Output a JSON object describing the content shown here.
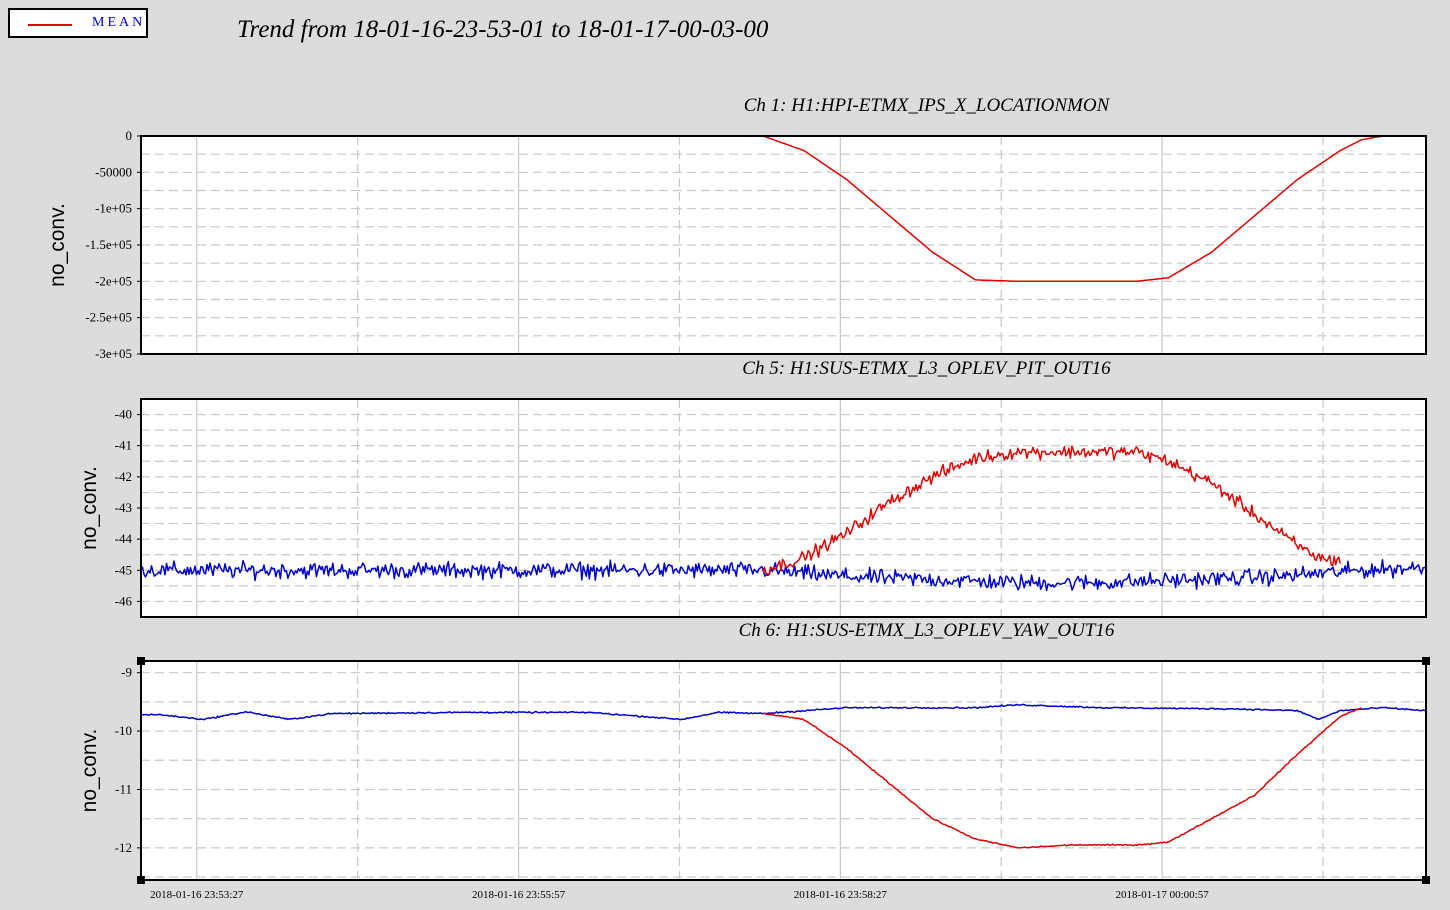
{
  "legend": {
    "label": "MEAN",
    "color": "#e00000"
  },
  "title": "Trend from 18-01-16-23-53-01 to 18-01-17-00-03-00",
  "colors": {
    "mean": "#e00000",
    "reference": "#0000cc",
    "grid": "#c8c8c8"
  },
  "chart_data": [
    {
      "type": "line",
      "title": "Ch 1: H1:HPI-ETMX_IPS_X_LOCATIONMON",
      "ylabel": "no_conv.",
      "ylim": [
        -300000,
        0
      ],
      "ytick_values": [
        0,
        -50000,
        -100000,
        -150000,
        -200000,
        -250000,
        -300000
      ],
      "ytick_labels": [
        "0",
        "-50000",
        "-1e+05",
        "-1.5e+05",
        "-2e+05",
        "-2.5e+05",
        "-3e+05"
      ],
      "xlim": [
        "2018-01-16 23:53:01",
        "2018-01-17 00:03:00"
      ],
      "series": [
        {
          "name": "MEAN",
          "color": "#e00000",
          "x": [
            "2018-01-16 23:57:51",
            "2018-01-16 23:58:10",
            "2018-01-16 23:58:30",
            "2018-01-16 23:58:50",
            "2018-01-16 23:59:10",
            "2018-01-16 23:59:30",
            "2018-01-16 23:59:50",
            "2018-01-17 00:00:15",
            "2018-01-17 00:00:45",
            "2018-01-17 00:01:00",
            "2018-01-17 00:01:20",
            "2018-01-17 00:01:40",
            "2018-01-17 00:02:00",
            "2018-01-17 00:02:20",
            "2018-01-17 00:02:30",
            "2018-01-17 00:02:40"
          ],
          "y": [
            0,
            -20000,
            -60000,
            -110000,
            -160000,
            -198000,
            -200000,
            -200000,
            -200000,
            -195000,
            -160000,
            -110000,
            -60000,
            -20000,
            -5000,
            0
          ]
        }
      ]
    },
    {
      "type": "line",
      "title": "Ch 5: H1:SUS-ETMX_L3_OPLEV_PIT_OUT16",
      "ylabel": "no_conv.",
      "ylim": [
        -46.5,
        -39.5
      ],
      "ytick_values": [
        -40,
        -41,
        -42,
        -43,
        -44,
        -45,
        -46
      ],
      "ytick_labels": [
        "-40",
        "-41",
        "-42",
        "-43",
        "-44",
        "-45",
        "-46"
      ],
      "xlim": [
        "2018-01-16 23:53:01",
        "2018-01-17 00:03:00"
      ],
      "series": [
        {
          "name": "",
          "color": "#0000cc",
          "x": [
            "2018-01-16 23:53:01",
            "2018-01-16 23:57:51",
            "2018-01-16 23:58:30",
            "2018-01-16 23:59:10",
            "2018-01-16 23:59:50",
            "2018-01-17 00:00:30",
            "2018-01-17 00:01:10",
            "2018-01-17 00:01:50",
            "2018-01-17 00:02:30",
            "2018-01-17 00:03:00"
          ],
          "y": [
            -45.0,
            -45.0,
            -45.2,
            -45.3,
            -45.4,
            -45.4,
            -45.3,
            -45.2,
            -45.0,
            -44.9
          ]
        },
        {
          "name": "MEAN",
          "color": "#e00000",
          "x": [
            "2018-01-16 23:57:51",
            "2018-01-16 23:58:10",
            "2018-01-16 23:58:30",
            "2018-01-16 23:58:50",
            "2018-01-16 23:59:10",
            "2018-01-16 23:59:30",
            "2018-01-16 23:59:50",
            "2018-01-17 00:00:15",
            "2018-01-17 00:00:45",
            "2018-01-17 00:01:00",
            "2018-01-17 00:01:20",
            "2018-01-17 00:01:40",
            "2018-01-17 00:02:00",
            "2018-01-17 00:02:10",
            "2018-01-17 00:02:20"
          ],
          "y": [
            -45.0,
            -44.6,
            -43.8,
            -42.8,
            -42.0,
            -41.4,
            -41.2,
            -41.2,
            -41.2,
            -41.5,
            -42.2,
            -43.2,
            -44.2,
            -44.6,
            -44.7
          ]
        }
      ]
    },
    {
      "type": "line",
      "title": "Ch 6: H1:SUS-ETMX_L3_OPLEV_YAW_OUT16",
      "ylabel": "no_conv.",
      "ylim": [
        -12.55,
        -8.8
      ],
      "ytick_values": [
        -9,
        -10,
        -11,
        -12
      ],
      "ytick_labels": [
        "-9",
        "-10",
        "-11",
        "-12"
      ],
      "xlim": [
        "2018-01-16 23:53:01",
        "2018-01-17 00:03:00"
      ],
      "xtick_labels": [
        "2018-01-16 23:53:27",
        "2018-01-16 23:55:57",
        "2018-01-16 23:58:27",
        "2018-01-17 00:00:57"
      ],
      "series": [
        {
          "name": "",
          "color": "#0000cc",
          "x": [
            "2018-01-16 23:53:01",
            "2018-01-16 23:53:10",
            "2018-01-16 23:53:30",
            "2018-01-16 23:53:50",
            "2018-01-16 23:54:10",
            "2018-01-16 23:54:30",
            "2018-01-16 23:55:30",
            "2018-01-16 23:56:30",
            "2018-01-16 23:57:13",
            "2018-01-16 23:57:30",
            "2018-01-16 23:57:51",
            "2018-01-16 23:58:30",
            "2018-01-16 23:59:30",
            "2018-01-16 23:59:50",
            "2018-01-17 00:00:30",
            "2018-01-17 00:01:30",
            "2018-01-17 00:02:00",
            "2018-01-17 00:02:10",
            "2018-01-17 00:02:20",
            "2018-01-17 00:02:40",
            "2018-01-17 00:03:00"
          ],
          "y": [
            -9.72,
            -9.72,
            -9.8,
            -9.67,
            -9.8,
            -9.7,
            -9.68,
            -9.68,
            -9.8,
            -9.68,
            -9.7,
            -9.6,
            -9.6,
            -9.55,
            -9.6,
            -9.62,
            -9.65,
            -9.8,
            -9.65,
            -9.6,
            -9.65
          ]
        },
        {
          "name": "MEAN",
          "color": "#e00000",
          "x": [
            "2018-01-16 23:57:51",
            "2018-01-16 23:58:10",
            "2018-01-16 23:58:30",
            "2018-01-16 23:58:50",
            "2018-01-16 23:59:10",
            "2018-01-16 23:59:30",
            "2018-01-16 23:59:50",
            "2018-01-17 00:00:15",
            "2018-01-17 00:00:45",
            "2018-01-17 00:01:00",
            "2018-01-17 00:01:20",
            "2018-01-17 00:01:40",
            "2018-01-17 00:02:00",
            "2018-01-17 00:02:20",
            "2018-01-17 00:02:30"
          ],
          "y": [
            -9.7,
            -9.8,
            -10.3,
            -10.9,
            -11.5,
            -11.85,
            -12.0,
            -11.95,
            -11.95,
            -11.9,
            -11.5,
            -11.1,
            -10.4,
            -9.75,
            -9.6
          ]
        }
      ]
    }
  ]
}
